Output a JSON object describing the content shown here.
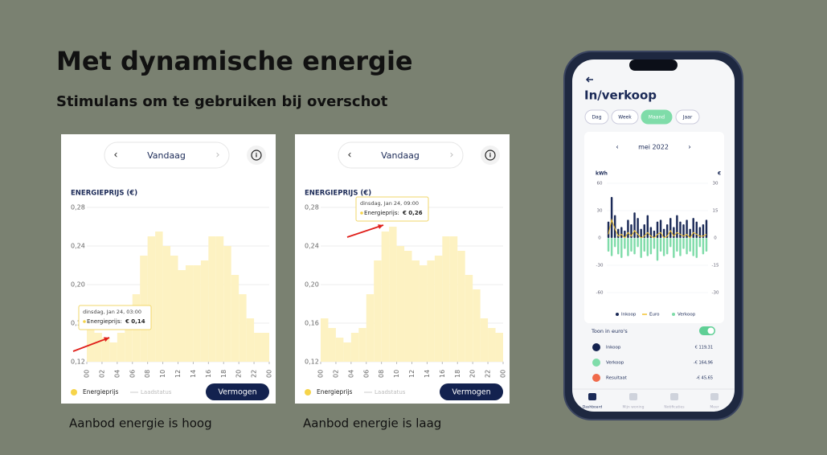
{
  "slide": {
    "title": "Met dynamische energie",
    "subtitle": "Stimulans om te gebruiken bij overschot"
  },
  "chart_data": [
    {
      "type": "bar",
      "nav_label": "Vandaag",
      "y_label": "ENERGIEPRIJS (€)",
      "series": [
        {
          "name": "Energieprijs",
          "color": "#fdf2c2",
          "values": [
            0.16,
            0.15,
            0.145,
            0.14,
            0.15,
            0.165,
            0.19,
            0.23,
            0.25,
            0.255,
            0.24,
            0.23,
            0.215,
            0.22,
            0.22,
            0.225,
            0.25,
            0.25,
            0.24,
            0.21,
            0.19,
            0.165,
            0.15,
            0.15
          ]
        }
      ],
      "inactive_legend": "Laadstatus",
      "button": "Vermogen",
      "xlim": [
        0,
        24
      ],
      "xticks": [
        {
          "value": 0,
          "label": "00"
        },
        {
          "value": 2,
          "label": "02"
        },
        {
          "value": 4,
          "label": "04"
        },
        {
          "value": 6,
          "label": "06"
        },
        {
          "value": 8,
          "label": "08"
        },
        10,
        12,
        14,
        16,
        18,
        20,
        22,
        {
          "value": 24,
          "label": "00"
        }
      ],
      "ylim": [
        0.12,
        0.28
      ],
      "yticks": [
        {
          "value": 0.12,
          "label": "0,12"
        },
        {
          "value": 0.16,
          "label": "0,16"
        },
        {
          "value": 0.2,
          "label": "0,20"
        },
        {
          "value": 0.24,
          "label": "0,24"
        },
        {
          "value": 0.28,
          "label": "0,28"
        }
      ],
      "grid": true,
      "tooltip": {
        "date": "dinsdag, Jan 24, 03:00",
        "label": "Energieprijs:",
        "value": "€ 0,14"
      },
      "caption": "Aanbod energie is hoog"
    },
    {
      "type": "bar",
      "nav_label": "Vandaag",
      "y_label": "ENERGIEPRIJS (€)",
      "series": [
        {
          "name": "Energieprijs",
          "color": "#fdf2c2",
          "values": [
            0.165,
            0.155,
            0.145,
            0.14,
            0.15,
            0.155,
            0.19,
            0.225,
            0.255,
            0.26,
            0.24,
            0.235,
            0.225,
            0.22,
            0.225,
            0.23,
            0.25,
            0.25,
            0.235,
            0.21,
            0.195,
            0.165,
            0.155,
            0.15
          ]
        }
      ],
      "inactive_legend": "Laadstatus",
      "button": "Vermogen",
      "xlim": [
        0,
        24
      ],
      "xticks": [
        {
          "value": 0,
          "label": "00"
        },
        {
          "value": 2,
          "label": "02"
        },
        {
          "value": 4,
          "label": "04"
        },
        {
          "value": 6,
          "label": "06"
        },
        {
          "value": 8,
          "label": "08"
        },
        10,
        12,
        14,
        16,
        18,
        20,
        22,
        {
          "value": 24,
          "label": "00"
        }
      ],
      "ylim": [
        0.12,
        0.28
      ],
      "yticks": [
        {
          "value": 0.12,
          "label": "0,12"
        },
        {
          "value": 0.16,
          "label": "0,16"
        },
        {
          "value": 0.2,
          "label": "0,20"
        },
        {
          "value": 0.24,
          "label": "0,24"
        },
        {
          "value": 0.28,
          "label": "0,28"
        }
      ],
      "grid": true,
      "tooltip": {
        "date": "dinsdag, Jan 24, 09:00",
        "label": "Energieprijs:",
        "value": "€ 0,26"
      },
      "caption": "Aanbod energie is laag"
    },
    {
      "type": "phone-bar",
      "period": "mei 2022",
      "y_label": "kWh",
      "y2_label": "€",
      "series": [
        {
          "name": "Inkoop",
          "color": "#1b2a57",
          "values": [
            18,
            45,
            25,
            10,
            12,
            8,
            20,
            15,
            28,
            22,
            10,
            15,
            25,
            12,
            8,
            18,
            20,
            10,
            15,
            22,
            12,
            25,
            18,
            15,
            20,
            10,
            22,
            18,
            12,
            15,
            20
          ]
        },
        {
          "name": "Euro",
          "color": "#f2c230",
          "axis": "y2",
          "values": [
            2,
            10,
            5,
            1,
            2,
            0,
            3,
            1,
            4,
            2,
            0,
            1,
            3,
            1,
            0,
            2,
            3,
            0,
            1,
            4,
            1,
            3,
            2,
            1,
            2,
            0,
            3,
            2,
            1,
            1,
            2
          ]
        },
        {
          "name": "Verkoop",
          "color": "#7fdca9",
          "values": [
            -15,
            -20,
            -10,
            -18,
            -22,
            -12,
            -20,
            -15,
            -18,
            -10,
            -22,
            -15,
            -20,
            -18,
            -12,
            -25,
            -15,
            -20,
            -18,
            -10,
            -22,
            -15,
            -20,
            -12,
            -18,
            -15,
            -20,
            -22,
            -10,
            -18,
            -15
          ]
        }
      ],
      "ylim": [
        -60,
        60
      ],
      "yticks": [
        60,
        30,
        0,
        -30,
        -60
      ],
      "y2lim": [
        -30,
        30
      ],
      "y2ticks": [
        30,
        15,
        0,
        -15,
        -30
      ],
      "grid": true
    }
  ],
  "phone": {
    "title": "In/verkoop",
    "tabs": [
      "Dag",
      "Week",
      "Maand",
      "Jaar"
    ],
    "toggle_label": "Toon in euro's",
    "rows": [
      {
        "label": "Inkoop",
        "value": "€ 119,31"
      },
      {
        "label": "Verkoop",
        "value": "-€ 164,96"
      },
      {
        "label": "Resultaat",
        "value": "-€ 45,65"
      }
    ],
    "nav": [
      "Dashboard",
      "Mijn woning",
      "Notificaties",
      "Meer"
    ]
  }
}
